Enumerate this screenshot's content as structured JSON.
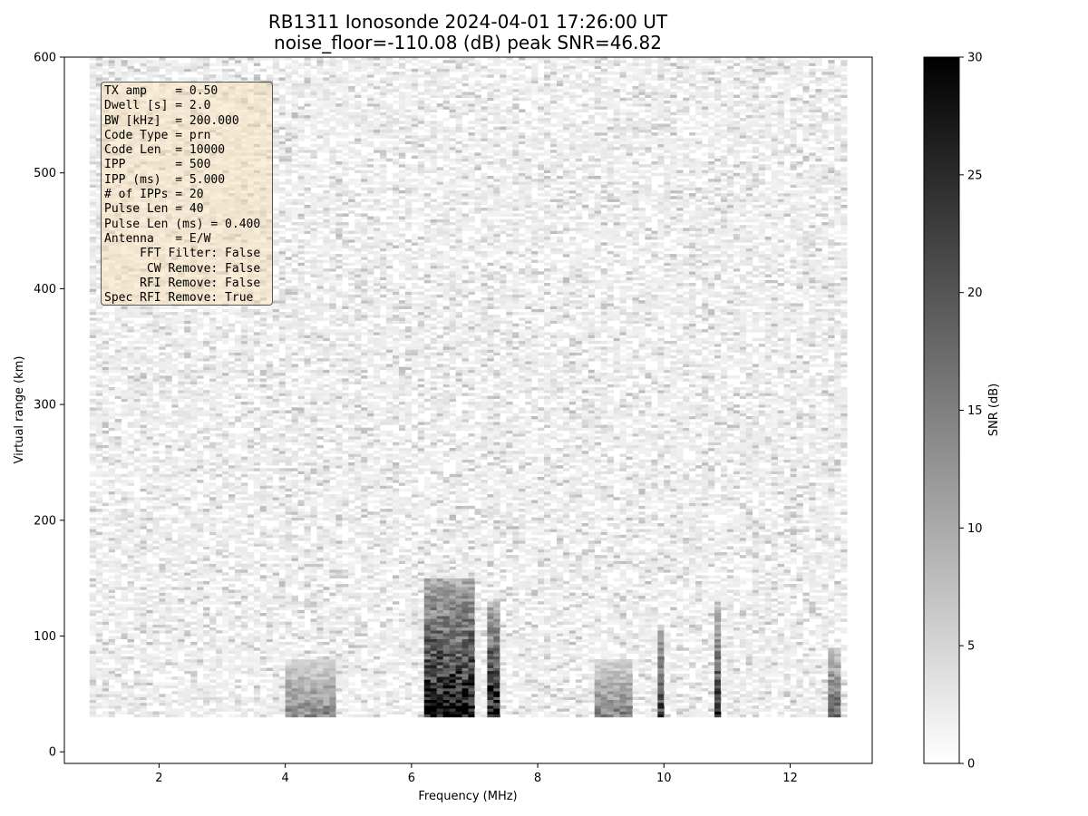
{
  "chart_data": {
    "type": "heatmap",
    "title": "RB1311 Ionosonde 2024-04-01 17:26:00  UT",
    "subtitle": "noise_floor=-110.08 (dB) peak SNR=46.82",
    "xlabel": "Frequency (MHz)",
    "ylabel": "Virtual range (km)",
    "xlim": [
      0.5,
      13.3
    ],
    "ylim": [
      -10,
      600
    ],
    "xticks": [
      "2",
      "4",
      "6",
      "8",
      "10",
      "12"
    ],
    "yticks": [
      "0",
      "100",
      "200",
      "300",
      "400",
      "500",
      "600"
    ],
    "colorbar": {
      "label": "SNR (dB)",
      "range": [
        0,
        30
      ],
      "ticks": [
        "0",
        "5",
        "10",
        "15",
        "20",
        "25",
        "30"
      ],
      "colormap": "binary (white to black)"
    },
    "data_extent": {
      "freq_mhz": [
        0.9,
        12.9
      ],
      "range_km": [
        30,
        600
      ]
    },
    "features": [
      {
        "freq_mhz": [
          6.1,
          6.9
        ],
        "range_km": [
          30,
          150
        ],
        "snr_db": 30
      },
      {
        "freq_mhz": [
          7.1,
          7.3
        ],
        "range_km": [
          30,
          130
        ],
        "snr_db": 30
      },
      {
        "freq_mhz": [
          9.8,
          9.95
        ],
        "range_km": [
          30,
          110
        ],
        "snr_db": 25
      },
      {
        "freq_mhz": [
          10.7,
          10.85
        ],
        "range_km": [
          30,
          130
        ],
        "snr_db": 25
      },
      {
        "freq_mhz": [
          12.5,
          12.7
        ],
        "range_km": [
          30,
          90
        ],
        "snr_db": 20
      },
      {
        "freq_mhz": [
          4.0,
          4.8
        ],
        "range_km": [
          30,
          80
        ],
        "snr_db": 15
      },
      {
        "freq_mhz": [
          8.8,
          9.4
        ],
        "range_km": [
          30,
          80
        ],
        "snr_db": 15
      }
    ]
  },
  "info_box": {
    "lines": [
      "TX amp    = 0.50",
      "Dwell [s] = 2.0",
      "BW [kHz]  = 200.000",
      "Code Type = prn",
      "Code Len  = 10000",
      "IPP       = 500",
      "IPP (ms)  = 5.000",
      "# of IPPs = 20",
      "Pulse Len = 40",
      "Pulse Len (ms) = 0.400",
      "Antenna   = E/W",
      "     FFT Filter: False",
      "      CW Remove: False",
      "     RFI Remove: False",
      "Spec RFI Remove: True"
    ]
  }
}
